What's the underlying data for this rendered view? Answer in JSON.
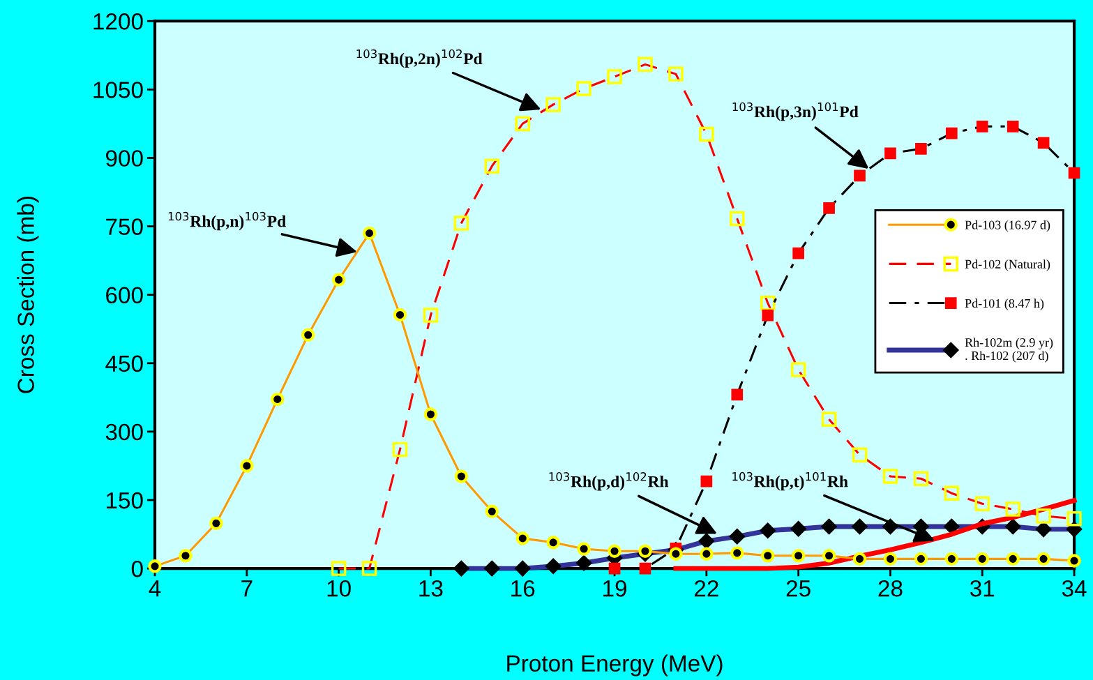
{
  "chart_data": {
    "type": "line",
    "xlabel": "Proton Energy (MeV)",
    "ylabel": "Cross Section (mb)",
    "xlim": [
      4,
      34
    ],
    "xticks": [
      4,
      7,
      10,
      13,
      16,
      19,
      22,
      25,
      28,
      31,
      34
    ],
    "ylim": [
      0,
      1200
    ],
    "yticks": [
      0,
      150,
      300,
      450,
      600,
      750,
      900,
      1050,
      1200
    ],
    "grid": false,
    "legend": "right",
    "series": [
      {
        "name": "Pd-103 (16.97 d)",
        "color": "#ff9900",
        "marker": "circle",
        "line_style": "solid",
        "x": [
          4,
          5,
          6,
          7,
          8,
          9,
          10,
          11,
          12,
          13,
          14,
          15,
          16,
          17,
          18,
          19,
          20,
          21,
          22,
          23,
          24,
          25,
          26,
          27,
          28,
          29,
          30,
          31,
          32,
          33,
          34
        ],
        "values": [
          5,
          28,
          99,
          225,
          371,
          512,
          633,
          735,
          556,
          338,
          202,
          125,
          66,
          57,
          43,
          38,
          38,
          32,
          32,
          34,
          28,
          28,
          28,
          21,
          21,
          21,
          21,
          21,
          21,
          21,
          17
        ]
      },
      {
        "name": "Pd-102 (Natural)",
        "color": "#ff0000",
        "marker": "square",
        "line_style": "dashed",
        "x": [
          10,
          11,
          12,
          13,
          14,
          15,
          16,
          17,
          18,
          19,
          20,
          21,
          22,
          23,
          24,
          25,
          26,
          27,
          28,
          29,
          30,
          31,
          32,
          33,
          34
        ],
        "values": [
          0,
          0,
          261,
          555,
          757,
          882,
          975,
          1017,
          1052,
          1078,
          1105,
          1084,
          952,
          767,
          582,
          436,
          327,
          249,
          202,
          197,
          165,
          142,
          130,
          115,
          109
        ]
      },
      {
        "name": "Pd-101 (8.47 h)",
        "color": "#000000",
        "marker": "square",
        "line_style": "dashdot",
        "x": [
          19,
          20,
          21,
          22,
          23,
          24,
          25,
          26,
          27,
          28,
          29,
          30,
          31,
          32,
          33,
          34
        ],
        "values": [
          0,
          0,
          44,
          191,
          381,
          555,
          691,
          790,
          861,
          910,
          920,
          954,
          969,
          969,
          933,
          867
        ]
      },
      {
        "name": "Rh-102m (2.9 yr)\n. Rh-102 (207 d)",
        "color": "#333399",
        "marker": "diamond",
        "line_style": "solid",
        "x": [
          14,
          15,
          16,
          17,
          18,
          19,
          20,
          21,
          22,
          23,
          24,
          25,
          26,
          27,
          28,
          29,
          30,
          31,
          32,
          33,
          34
        ],
        "values": [
          0,
          0,
          0,
          5,
          12,
          23,
          32,
          41,
          60,
          70,
          83,
          87,
          92,
          92,
          92,
          92,
          92,
          92,
          92,
          86,
          86
        ]
      },
      {
        "color": "#ff0000",
        "marker": "none",
        "line_style": "solid",
        "x": [
          21,
          22,
          23,
          24,
          25,
          26,
          27,
          28,
          29,
          30,
          31,
          32,
          33,
          34
        ],
        "values": [
          0,
          0,
          0,
          0,
          3,
          12,
          27,
          41,
          57,
          75,
          98,
          112,
          130,
          149
        ]
      }
    ],
    "annotations": [
      {
        "text": "$^{103}$Rh(p,n)$^{103}$Pd",
        "x": 10.6,
        "y": 694
      },
      {
        "text": "$^{103}$Rh(p,2n)$^{102}$Pd",
        "x": 16.6,
        "y": 1006
      },
      {
        "text": "$^{103}$Rh(p,3n)$^{101}$Pd",
        "x": 27.3,
        "y": 876
      },
      {
        "text": "$^{103}$Rh(p,d)$^{102}$Rh",
        "x": 22.35,
        "y": 76
      },
      {
        "text": "$^{103}$Rh(p,t)$^{101}$Rh",
        "x": 29.45,
        "y": 61
      }
    ]
  }
}
